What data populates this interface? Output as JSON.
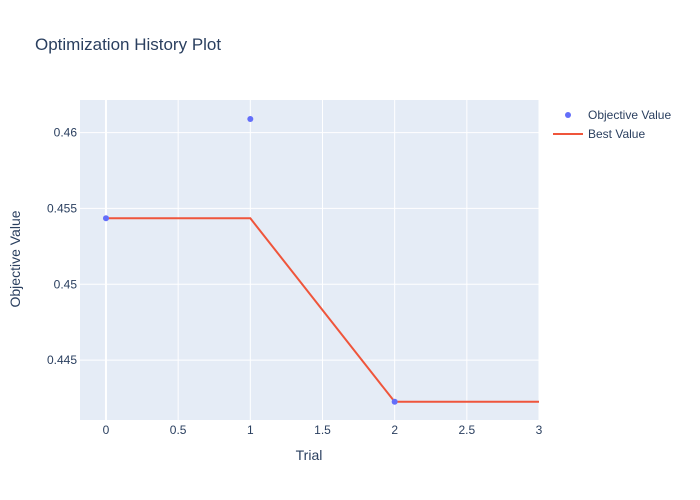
{
  "chart_data": {
    "type": "line",
    "title": "Optimization History Plot",
    "xlabel": "Trial",
    "ylabel": "Objective Value",
    "xlim": [
      -0.18,
      3
    ],
    "ylim": [
      0.44105,
      0.46215
    ],
    "x_ticks": [
      0,
      0.5,
      1,
      1.5,
      2,
      2.5,
      3
    ],
    "x_tick_labels": [
      "0",
      "0.5",
      "1",
      "1.5",
      "2",
      "2.5",
      "3"
    ],
    "y_ticks": [
      0.445,
      0.45,
      0.455,
      0.46
    ],
    "y_tick_labels": [
      "0.445",
      "0.45",
      "0.455",
      "0.46"
    ],
    "grid": true,
    "legend_position": "top-right",
    "series": [
      {
        "name": "Objective Value",
        "kind": "scatter",
        "color": "#636efa",
        "x": [
          0,
          1,
          2
        ],
        "y": [
          0.45435,
          0.4609,
          0.44225
        ]
      },
      {
        "name": "Best Value",
        "kind": "line",
        "color": "#ef553b",
        "x": [
          0,
          1,
          2,
          3
        ],
        "y": [
          0.45435,
          0.45435,
          0.44225,
          0.44225
        ]
      }
    ]
  },
  "colors": {
    "plot_bg": "#e5ecf6",
    "grid": "#ffffff",
    "text": "#2a3f5f"
  }
}
